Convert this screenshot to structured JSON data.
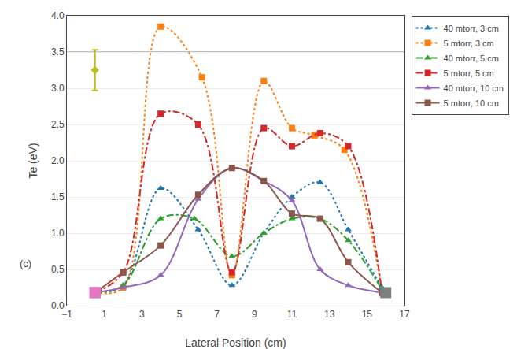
{
  "chart_data": {
    "type": "line",
    "xlabel": "Lateral Position (cm)",
    "ylabel": "Te (eV)",
    "xlim": [
      -1,
      17
    ],
    "ylim": [
      0,
      4
    ],
    "xticks": [
      {
        "value": -1,
        "label": "−1"
      },
      1,
      3,
      5,
      7,
      9,
      11,
      13,
      15,
      17
    ],
    "yticks": [
      {
        "value": 0,
        "label": "0.0"
      },
      0.5,
      {
        "value": 1.0,
        "label": "1.0"
      },
      1.5,
      {
        "value": 2.0,
        "label": "2.0"
      },
      2.5,
      {
        "value": 3.0,
        "label": "3.0"
      },
      3.5,
      {
        "value": 4.0,
        "label": "4.0"
      }
    ],
    "grid": "y",
    "legend": "upper right",
    "annotations": [
      "(c)"
    ],
    "series": [
      {
        "name": "40 mtorr, 3 cm",
        "line_style": "dotted",
        "marker": "triangle",
        "x": [
          0.5,
          2.0,
          4.0,
          6.0,
          7.8,
          9.5,
          11.0,
          12.5,
          14.0,
          15.8
        ],
        "values": [
          0.18,
          0.28,
          1.62,
          1.05,
          0.28,
          1.0,
          1.5,
          1.7,
          1.05,
          0.25
        ]
      },
      {
        "name": "5 mtorr, 3 cm",
        "line_style": "dotted",
        "marker": "square",
        "x": [
          0.5,
          2.0,
          4.0,
          6.2,
          7.8,
          9.5,
          11.0,
          12.2,
          13.8,
          15.8
        ],
        "values": [
          0.18,
          0.25,
          3.85,
          3.15,
          0.42,
          3.1,
          2.45,
          2.35,
          2.15,
          0.18
        ]
      },
      {
        "name": "40 mtorr, 5 cm",
        "line_style": "dashdot",
        "marker": "triangle",
        "x": [
          0.5,
          2.0,
          4.0,
          5.8,
          7.8,
          9.5,
          11.0,
          12.5,
          14.0,
          15.8
        ],
        "values": [
          0.18,
          0.28,
          1.2,
          1.2,
          0.68,
          1.0,
          1.2,
          1.2,
          0.9,
          0.22
        ]
      },
      {
        "name": "5 mtorr, 5 cm",
        "line_style": "dashdot",
        "marker": "square",
        "x": [
          0.5,
          2.0,
          4.0,
          6.0,
          7.8,
          9.5,
          11.0,
          12.5,
          14.0,
          15.8
        ],
        "values": [
          0.18,
          0.46,
          2.65,
          2.5,
          0.46,
          2.45,
          2.2,
          2.38,
          2.2,
          0.18
        ]
      },
      {
        "name": "40 mtorr, 10 cm",
        "line_style": "solid",
        "marker": "triangle",
        "x": [
          0.5,
          2.0,
          4.0,
          6.0,
          7.8,
          9.5,
          11.0,
          12.5,
          14.0,
          15.8
        ],
        "values": [
          0.18,
          0.25,
          0.42,
          1.47,
          1.9,
          1.72,
          1.45,
          0.5,
          0.28,
          0.18
        ]
      },
      {
        "name": "5 mtorr, 10 cm",
        "line_style": "solid",
        "marker": "square",
        "x": [
          0.5,
          2.0,
          4.0,
          6.0,
          7.8,
          9.5,
          11.0,
          12.5,
          14.0,
          15.8
        ],
        "values": [
          0.18,
          0.46,
          0.83,
          1.53,
          1.9,
          1.72,
          1.27,
          1.2,
          0.6,
          0.18
        ]
      },
      {
        "type": "scatter",
        "marker": "large square",
        "x": [
          0.5,
          0.5
        ],
        "values": [
          0.18,
          0.18
        ]
      },
      {
        "type": "scatter",
        "marker": "large square",
        "x": [
          16.0
        ],
        "values": [
          0.18
        ]
      },
      {
        "type": "scatter",
        "marker": "diamond",
        "x": [
          0.5
        ],
        "values": [
          3.25
        ],
        "error": [
          0.28
        ]
      },
      {
        "type": "hline",
        "values": [
          3.5
        ]
      }
    ]
  }
}
